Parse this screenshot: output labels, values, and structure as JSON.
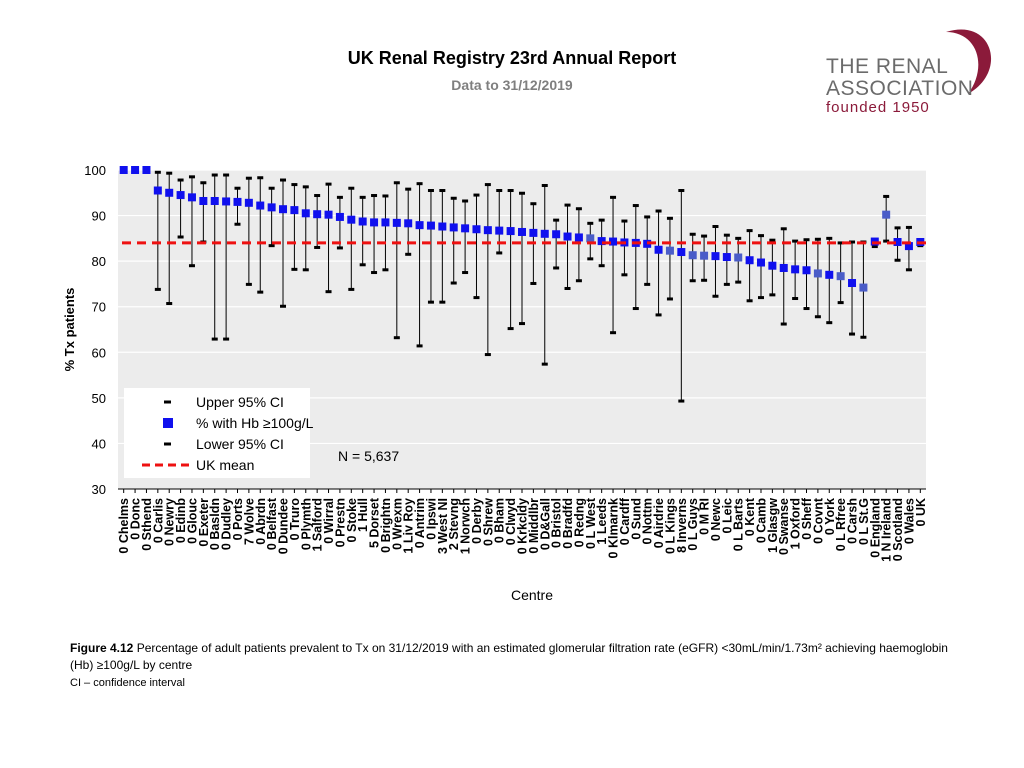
{
  "header": {
    "title": "UK Renal Registry 23rd Annual Report",
    "subtitle": "Data to 31/12/2019"
  },
  "logo": {
    "line1": "THE RENAL",
    "line2": "ASSOCIATION",
    "founded": "founded 1950",
    "brand_color": "#8b1a3a"
  },
  "chart_data": {
    "type": "scatter",
    "title": "",
    "ylabel": "% Tx patients",
    "xlabel": "Centre",
    "ylim": [
      30,
      100
    ],
    "yticks": [
      30,
      40,
      50,
      60,
      70,
      80,
      90,
      100
    ],
    "uk_mean": 84,
    "annotation": "N = 5,637",
    "legend": {
      "placement": "bottom-left",
      "items": [
        "Upper 95% CI",
        "% with Hb ≥100g/L",
        "Lower 95% CI",
        "UK mean"
      ]
    },
    "colors": {
      "point": "#1010ee",
      "point_light": "#4a5cc8",
      "ci": "#000000",
      "mean": "#ee1111",
      "plot_bg": "#ececec"
    },
    "categories": [
      "0 Chelms",
      "0 Donc",
      "0 Sthend",
      "0 Carlis",
      "0 Newry",
      "0 Edinb",
      "0 Glouc",
      "0 Exeter",
      "0 Basldn",
      "0 Dudley",
      "0 Ports",
      "7 Wolve",
      "0 Abrdn",
      "0 Belfast",
      "0 Dundee",
      "0 Truro",
      "0 Plymth",
      "1 Salford",
      "0 Wirral",
      "0 Prestn",
      "0 Stoke",
      "1 Hull",
      "5 Dorset",
      "0 Brightn",
      "0 Wrexm",
      "1 Liv Roy",
      "0 Antrim",
      "0 Ipswi",
      "3 West NI",
      "2 Stevng",
      "1 Norwch",
      "0 Derby",
      "0 Shrew",
      "0 Bham",
      "0 Clwyd",
      "0 Krkcldy",
      "0 Middlbr",
      "0 D&Gall",
      "0 Bristol",
      "0 Bradfd",
      "0 Redng",
      "0 L West",
      "1 Leeds",
      "0 Klmarnk",
      "0 Cardff",
      "0 Sund",
      "0 Nottm",
      "0 Airdrie",
      "0 L Kings",
      "8 Inverns",
      "0 L Guys",
      "0 M RI",
      "0 Newc",
      "0 Leic",
      "0 L Barts",
      "0 Kent",
      "0 Camb",
      "1 Glasgw",
      "0 Swanse",
      "1 Oxford",
      "0 Sheff",
      "0 Covnt",
      "0 York",
      "0 L Rfree",
      "0 Carsh",
      "0 L St.G",
      "0 England",
      "1 N Ireland",
      "0 Scotland",
      "0 Wales",
      "0 UK"
    ],
    "values": [
      100,
      100,
      100,
      95.5,
      95,
      94.5,
      94,
      93.2,
      93.2,
      93.1,
      93,
      92.8,
      92.2,
      91.8,
      91.4,
      91.2,
      90.5,
      90.3,
      90.2,
      89.7,
      89.1,
      88.7,
      88.5,
      88.5,
      88.4,
      88.3,
      87.9,
      87.8,
      87.6,
      87.4,
      87.2,
      87,
      86.8,
      86.7,
      86.6,
      86.4,
      86.2,
      86,
      85.9,
      85.4,
      85.2,
      85,
      84.4,
      84.3,
      84.1,
      84,
      83.8,
      82.5,
      82.3,
      82,
      81.3,
      81.2,
      81.1,
      80.9,
      80.8,
      80.2,
      79.7,
      79,
      78.5,
      78.2,
      78,
      77.3,
      77,
      76.7,
      75.2,
      74.2,
      84.3,
      90.2,
      84.2,
      83.3,
      84.2
    ],
    "upper": [
      100,
      100,
      100,
      99.5,
      99.3,
      97.8,
      98.5,
      97.2,
      98.9,
      98.9,
      96,
      98.2,
      98.3,
      96,
      97.8,
      96.8,
      96.3,
      94.4,
      96.9,
      94,
      96,
      94,
      94.4,
      94.3,
      97.2,
      95.8,
      97,
      95.5,
      95.5,
      93.8,
      93.2,
      94.5,
      96.8,
      95.5,
      95.5,
      94.9,
      92.6,
      96.6,
      89,
      92.3,
      91.5,
      88.3,
      89,
      94,
      88.8,
      92.2,
      89.7,
      91,
      89.4,
      95.5,
      85.9,
      85.5,
      87.6,
      85.7,
      85,
      86.7,
      85.6,
      84.6,
      87.1,
      84.4,
      84.7,
      84.8,
      85,
      84,
      84.2,
      84.2,
      84.5,
      94.2,
      87.3,
      87.4,
      84.5
    ],
    "lower": [
      100,
      100,
      100,
      73.8,
      70.7,
      85.3,
      79,
      84.2,
      62.9,
      62.9,
      88.1,
      74.9,
      73.2,
      83.4,
      70.1,
      78.2,
      78.1,
      83,
      73.3,
      82.9,
      73.8,
      79.2,
      77.5,
      78.1,
      63.2,
      81.5,
      61.4,
      71,
      71,
      75.2,
      77.5,
      72,
      59.5,
      81.8,
      65.2,
      66.3,
      75.1,
      57.4,
      78.5,
      74,
      75.7,
      80.5,
      79,
      64.3,
      77,
      69.6,
      74.9,
      68.2,
      71.7,
      49.3,
      75.7,
      75.8,
      72.3,
      74.9,
      75.4,
      71.3,
      72,
      72.6,
      66.2,
      71.8,
      69.6,
      67.8,
      66.5,
      70.9,
      64,
      63.3,
      83.2,
      84.4,
      80.2,
      78.1,
      83.4
    ]
  },
  "caption": {
    "figure_label": "Figure 4.12",
    "text": " Percentage of adult patients prevalent to Tx on 31/12/2019 with an estimated glomerular filtration rate (eGFR) <30mL/min/1.73m² achieving haemoglobin (Hb) ≥100g/L by centre",
    "ci_note": "CI – confidence interval"
  }
}
